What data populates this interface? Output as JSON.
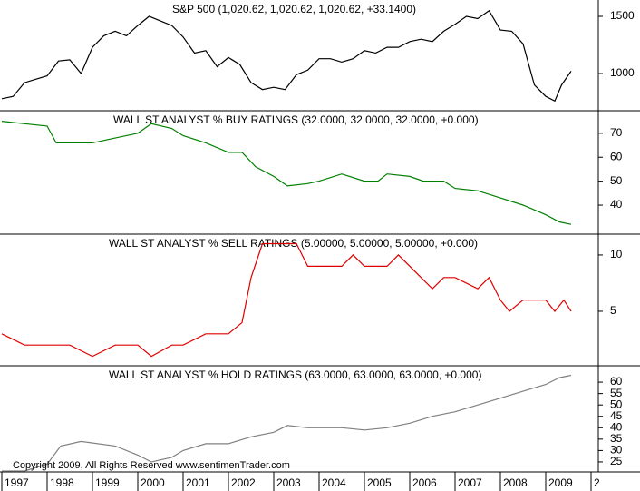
{
  "chart_data": [
    {
      "type": "line",
      "title": "S&P 500 (1,020.62, 1,020.62, 1,020.62, +33.1400)",
      "color": "#000000",
      "xlim": [
        1996.96,
        2010.16
      ],
      "ylim": [
        675,
        1643
      ],
      "yticks": [
        1000,
        1500
      ],
      "x": [
        1997.0,
        1997.25,
        1997.5,
        1997.75,
        1998.0,
        1998.25,
        1998.5,
        1998.75,
        1999.0,
        1999.25,
        1999.5,
        1999.75,
        2000.0,
        2000.25,
        2000.5,
        2000.75,
        2001.0,
        2001.25,
        2001.5,
        2001.75,
        2002.0,
        2002.25,
        2002.5,
        2002.75,
        2003.0,
        2003.25,
        2003.5,
        2003.75,
        2004.0,
        2004.25,
        2004.5,
        2004.75,
        2005.0,
        2005.25,
        2005.5,
        2005.75,
        2006.0,
        2006.25,
        2006.5,
        2006.75,
        2007.0,
        2007.25,
        2007.5,
        2007.75,
        2008.0,
        2008.25,
        2008.5,
        2008.75,
        2009.0,
        2009.2,
        2009.35,
        2009.56
      ],
      "values": [
        780,
        800,
        920,
        950,
        980,
        1110,
        1120,
        1000,
        1230,
        1330,
        1370,
        1330,
        1420,
        1500,
        1460,
        1420,
        1320,
        1180,
        1200,
        1060,
        1140,
        1080,
        920,
        860,
        880,
        860,
        990,
        1030,
        1130,
        1130,
        1100,
        1130,
        1200,
        1180,
        1230,
        1230,
        1280,
        1300,
        1280,
        1370,
        1430,
        1500,
        1480,
        1550,
        1380,
        1370,
        1260,
        900,
        800,
        760,
        900,
        1020.62
      ]
    },
    {
      "type": "line",
      "title": "WALL ST ANALYST % BUY RATINGS (32.0000, 32.0000, 32.0000, +0.000)",
      "color": "#008000",
      "xlim": [
        1996.96,
        2010.16
      ],
      "ylim": [
        27.9,
        79.4
      ],
      "yticks": [
        40,
        50,
        60,
        70
      ],
      "x": [
        1997.0,
        1997.5,
        1998.0,
        1998.2,
        1999.0,
        1999.5,
        2000.0,
        2000.3,
        2000.75,
        2001.0,
        2001.5,
        2002.0,
        2002.3,
        2002.6,
        2003.0,
        2003.3,
        2003.75,
        2004.0,
        2004.5,
        2005.0,
        2005.3,
        2005.5,
        2006.0,
        2006.3,
        2006.75,
        2007.0,
        2007.5,
        2008.0,
        2008.5,
        2009.0,
        2009.3,
        2009.56
      ],
      "values": [
        75,
        74,
        73,
        66,
        66,
        68,
        70,
        74,
        72,
        69,
        66,
        62,
        62,
        56,
        52,
        48,
        49,
        50,
        53,
        50,
        50,
        53,
        52,
        50,
        50,
        47,
        46,
        43,
        40,
        36,
        33,
        32
      ]
    },
    {
      "type": "line",
      "title": "WALL ST ANALYST % SELL RATINGS (5.00000, 5.00000, 5.00000, +0.000)",
      "color": "#e00000",
      "xlim": [
        1996.96,
        2010.16
      ],
      "ylim": [
        0.16,
        11.85
      ],
      "yticks": [
        5,
        10
      ],
      "x": [
        1997.0,
        1997.5,
        1998.5,
        1999.0,
        1999.5,
        2000.0,
        2000.3,
        2000.75,
        2001.0,
        2001.5,
        2002.0,
        2002.3,
        2002.5,
        2002.75,
        2003.0,
        2003.5,
        2003.75,
        2004.5,
        2004.75,
        2005.0,
        2005.5,
        2005.75,
        2006.25,
        2006.5,
        2006.75,
        2007.0,
        2007.5,
        2007.75,
        2008.0,
        2008.2,
        2008.5,
        2009.0,
        2009.2,
        2009.4,
        2009.56
      ],
      "values": [
        3,
        2,
        2,
        1,
        2,
        2,
        1,
        2,
        2,
        3,
        3,
        4,
        8,
        11,
        11,
        11,
        9,
        9,
        10,
        9,
        9,
        10,
        8,
        7,
        8,
        8,
        7,
        8,
        6,
        5,
        6,
        6,
        5,
        6,
        5
      ]
    },
    {
      "type": "line",
      "title": "WALL ST ANALYST % HOLD RATINGS (63.0000, 63.0000, 63.0000, +0.000)",
      "color": "#808080",
      "xlim": [
        1996.96,
        2010.16
      ],
      "ylim": [
        20.6,
        67.2
      ],
      "yticks": [
        25,
        30,
        35,
        40,
        45,
        50,
        55,
        60
      ],
      "xticks": [
        1997,
        1998,
        1999,
        2000,
        2001,
        2002,
        2003,
        2004,
        2005,
        2006,
        2007,
        2008,
        2009,
        {
          "value": 2010,
          "label": "2"
        }
      ],
      "annotation": "Copyright 2009, All Rights Reserved   www.sentimenTrader.com",
      "x": [
        1997.0,
        1997.5,
        1998.0,
        1998.3,
        1998.75,
        1999.5,
        2000.0,
        2000.3,
        2000.75,
        2001.0,
        2001.5,
        2002.0,
        2002.5,
        2003.0,
        2003.3,
        2003.75,
        2004.5,
        2005.0,
        2005.5,
        2006.0,
        2006.5,
        2007.0,
        2007.5,
        2008.0,
        2008.5,
        2009.0,
        2009.3,
        2009.56
      ],
      "values": [
        21,
        21,
        24,
        32,
        34,
        32,
        28,
        25,
        27,
        30,
        33,
        33,
        36,
        38,
        41,
        40,
        40,
        39,
        40,
        42,
        45,
        47,
        50,
        53,
        56,
        59,
        62,
        63
      ]
    }
  ]
}
